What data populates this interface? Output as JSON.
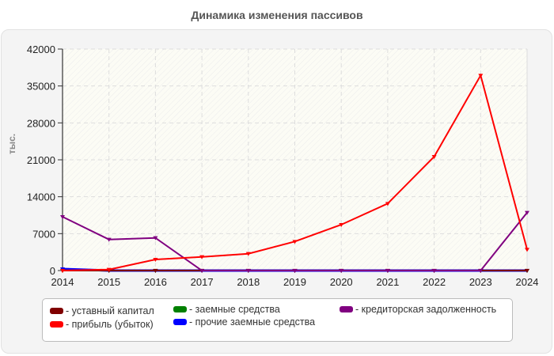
{
  "title": "Динамика изменения пассивов",
  "chart_data": {
    "type": "line",
    "title": "Динамика изменения пассивов",
    "xlabel": "",
    "ylabel": "тыс.",
    "x": [
      2014,
      2015,
      2016,
      2017,
      2018,
      2019,
      2020,
      2021,
      2022,
      2023,
      2024
    ],
    "ylim": [
      0,
      42000
    ],
    "yticks": [
      0,
      7000,
      14000,
      21000,
      28000,
      35000,
      42000
    ],
    "grid": true,
    "legend_position": "bottom",
    "series": [
      {
        "name": "уставный капитал",
        "color": "#800000",
        "values": [
          10,
          10,
          10,
          10,
          10,
          10,
          10,
          10,
          10,
          10,
          10
        ]
      },
      {
        "name": "прибыль (убыток)",
        "color": "#ff0000",
        "values": [
          0,
          200,
          2100,
          2600,
          3200,
          5500,
          8700,
          12700,
          21600,
          37000,
          4000
        ]
      },
      {
        "name": "заемные средства",
        "color": "#008000",
        "values": [
          0,
          0,
          0,
          0,
          0,
          0,
          0,
          0,
          0,
          0,
          0
        ]
      },
      {
        "name": "прочие заемные средства",
        "color": "#0000ff",
        "values": [
          300,
          0,
          0,
          0,
          0,
          0,
          0,
          0,
          0,
          0,
          0
        ]
      },
      {
        "name": "кредиторская задолженность",
        "color": "#800080",
        "values": [
          10200,
          5900,
          6200,
          0,
          0,
          0,
          0,
          0,
          0,
          0,
          11000
        ]
      }
    ]
  },
  "legend": {
    "items": [
      {
        "label": "- уставный капитал",
        "color": "#800000"
      },
      {
        "label": "- прибыль (убыток)",
        "color": "#ff0000"
      },
      {
        "label": "- заемные средства",
        "color": "#008000"
      },
      {
        "label": "- прочие заемные средства",
        "color": "#0000ff"
      },
      {
        "label": "- кредиторская задолженность",
        "color": "#800080"
      }
    ]
  }
}
